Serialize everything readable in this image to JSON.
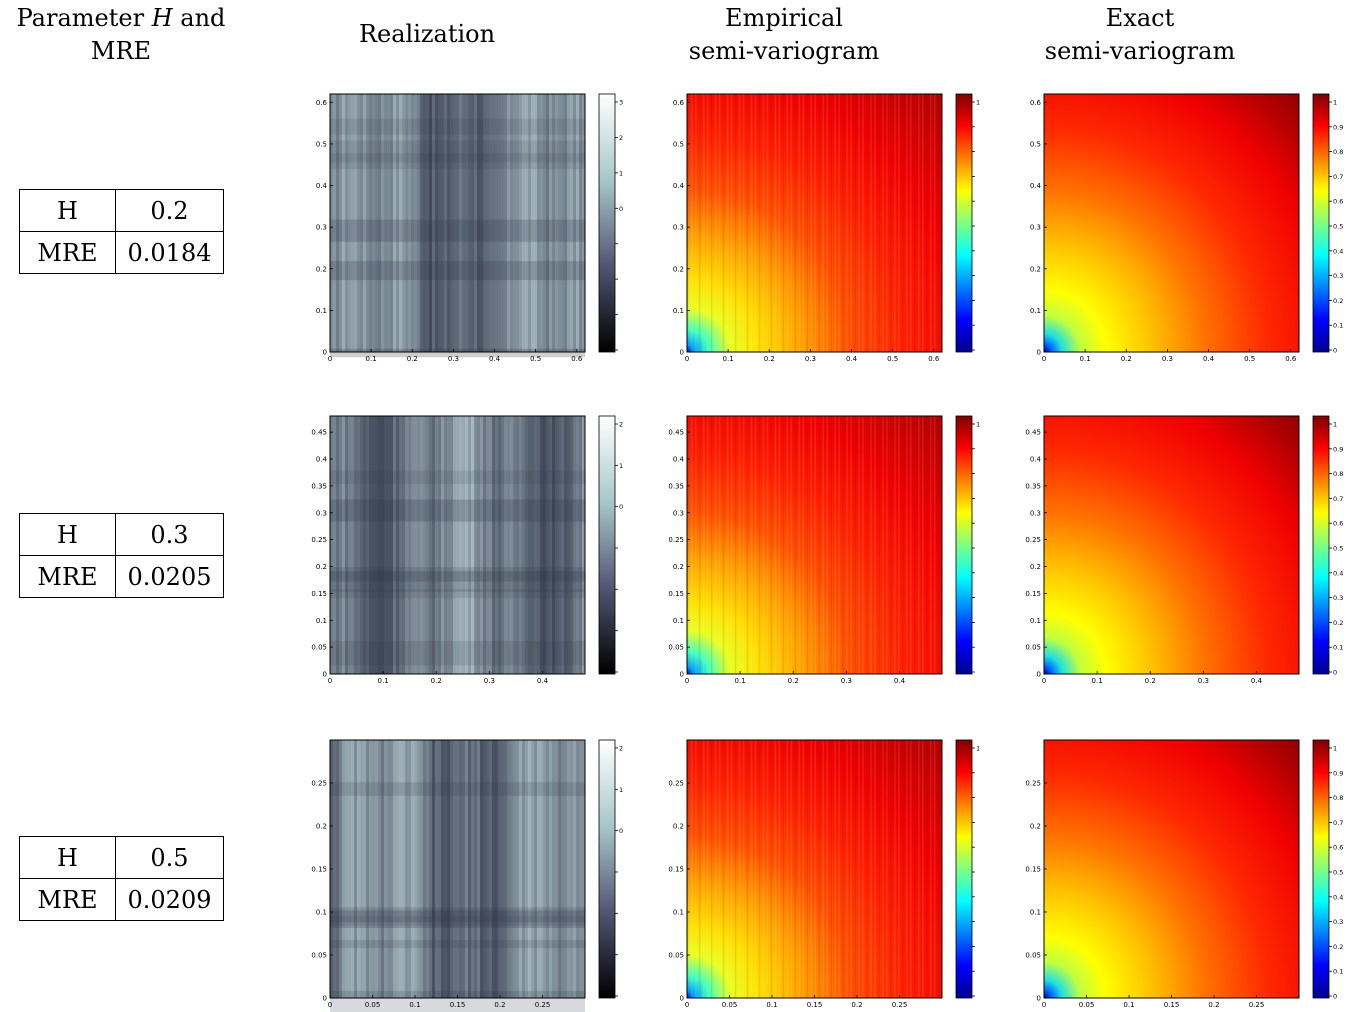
{
  "headers": {
    "param_line1_pre": "Parameter ",
    "param_line1_ital": "H",
    "param_line1_post": " and",
    "param_line2": "MRE",
    "realization": "Realization",
    "empirical_line1": "Empirical",
    "empirical_line2": "semi-variogram",
    "exact_line1": "Exact",
    "exact_line2": "semi-variogram"
  },
  "rows": [
    {
      "h_label": "H",
      "h_value": "0.2",
      "mre_label": "MRE",
      "mre_value": "0.0184"
    },
    {
      "h_label": "H",
      "h_value": "0.3",
      "mre_label": "MRE",
      "mre_value": "0.0205"
    },
    {
      "h_label": "H",
      "h_value": "0.5",
      "mre_label": "MRE",
      "mre_value": "0.0209"
    }
  ],
  "chart_data": [
    {
      "row": 0,
      "panel": "realization",
      "type": "heatmap",
      "colormap": "bone",
      "x_ticks": [
        "0",
        "0.1",
        "0.2",
        "0.3",
        "0.4",
        "0.5",
        "0.6"
      ],
      "y_ticks": [
        "0",
        "0.1",
        "0.2",
        "0.3",
        "0.4",
        "0.5",
        "0.6"
      ],
      "xlim": [
        0,
        0.62
      ],
      "ylim": [
        0,
        0.62
      ],
      "colorbar_ticks": [
        "3",
        "2",
        "1",
        "0",
        "",
        "",
        "",
        ""
      ]
    },
    {
      "row": 0,
      "panel": "empirical",
      "type": "heatmap",
      "colormap": "jet",
      "x_ticks": [
        "0",
        "0.1",
        "0.2",
        "0.3",
        "0.4",
        "0.5",
        "0.6"
      ],
      "y_ticks": [
        "0",
        "0.1",
        "0.2",
        "0.3",
        "0.4",
        "0.5",
        "0.6"
      ],
      "xlim": [
        0,
        0.62
      ],
      "ylim": [
        0,
        0.62
      ],
      "colorbar_ticks": [
        "1",
        "",
        "",
        "",
        "",
        "",
        "",
        "",
        "",
        "",
        ""
      ]
    },
    {
      "row": 0,
      "panel": "exact",
      "type": "heatmap",
      "colormap": "jet",
      "x_ticks": [
        "0",
        "0.1",
        "0.2",
        "0.3",
        "0.4",
        "0.5",
        "0.6"
      ],
      "y_ticks": [
        "0",
        "0.1",
        "0.2",
        "0.3",
        "0.4",
        "0.5",
        "0.6"
      ],
      "xlim": [
        0,
        0.62
      ],
      "ylim": [
        0,
        0.62
      ],
      "colorbar_ticks": [
        "1",
        "0.9",
        "0.8",
        "0.7",
        "0.6",
        "0.5",
        "0.4",
        "0.3",
        "0.2",
        "0.1",
        "0"
      ]
    },
    {
      "row": 1,
      "panel": "realization",
      "type": "heatmap",
      "colormap": "bone",
      "x_ticks": [
        "0",
        "0.1",
        "0.2",
        "0.3",
        "0.4"
      ],
      "y_ticks": [
        "0",
        "0.05",
        "0.1",
        "0.15",
        "0.2",
        "0.25",
        "0.3",
        "0.35",
        "0.4",
        "0.45"
      ],
      "xlim": [
        0,
        0.48
      ],
      "ylim": [
        0,
        0.48
      ],
      "colorbar_ticks": [
        "2",
        "1",
        "0",
        "",
        "",
        "",
        ""
      ]
    },
    {
      "row": 1,
      "panel": "empirical",
      "type": "heatmap",
      "colormap": "jet",
      "x_ticks": [
        "0",
        "0.1",
        "0.2",
        "0.3",
        "0.4"
      ],
      "y_ticks": [
        "0",
        "0.05",
        "0.1",
        "0.15",
        "0.2",
        "0.25",
        "0.3",
        "0.35",
        "0.4",
        "0.45"
      ],
      "xlim": [
        0,
        0.48
      ],
      "ylim": [
        0,
        0.48
      ],
      "colorbar_ticks": [
        "1",
        "",
        "",
        "",
        "",
        "",
        "",
        "",
        "",
        "",
        ""
      ]
    },
    {
      "row": 1,
      "panel": "exact",
      "type": "heatmap",
      "colormap": "jet",
      "x_ticks": [
        "0",
        "0.1",
        "0.2",
        "0.3",
        "0.4"
      ],
      "y_ticks": [
        "0",
        "0.05",
        "0.1",
        "0.15",
        "0.2",
        "0.25",
        "0.3",
        "0.35",
        "0.4",
        "0.45"
      ],
      "xlim": [
        0,
        0.48
      ],
      "ylim": [
        0,
        0.48
      ],
      "colorbar_ticks": [
        "1",
        "0.9",
        "0.8",
        "0.7",
        "0.6",
        "0.5",
        "0.4",
        "0.3",
        "0.2",
        "0.1",
        "0"
      ]
    },
    {
      "row": 2,
      "panel": "realization",
      "type": "heatmap",
      "colormap": "bone",
      "x_ticks": [
        "0",
        "0.05",
        "0.1",
        "0.15",
        "0.2",
        "0.25"
      ],
      "y_ticks": [
        "0",
        "0.05",
        "0.1",
        "0.15",
        "0.2",
        "0.25"
      ],
      "xlim": [
        0,
        0.3
      ],
      "ylim": [
        0,
        0.3
      ],
      "colorbar_ticks": [
        "2",
        "1",
        "0",
        "",
        "",
        "",
        ""
      ]
    },
    {
      "row": 2,
      "panel": "empirical",
      "type": "heatmap",
      "colormap": "jet",
      "x_ticks": [
        "0",
        "0.05",
        "0.1",
        "0.15",
        "0.2",
        "0.25"
      ],
      "y_ticks": [
        "0",
        "0.05",
        "0.1",
        "0.15",
        "0.2",
        "0.25"
      ],
      "xlim": [
        0,
        0.3
      ],
      "ylim": [
        0,
        0.3
      ],
      "colorbar_ticks": [
        "1",
        "",
        "",
        "",
        "",
        "",
        "",
        "",
        "",
        "",
        ""
      ]
    },
    {
      "row": 2,
      "panel": "exact",
      "type": "heatmap",
      "colormap": "jet",
      "x_ticks": [
        "0",
        "0.05",
        "0.1",
        "0.15",
        "0.2",
        "0.25"
      ],
      "y_ticks": [
        "0",
        "0.05",
        "0.1",
        "0.15",
        "0.2",
        "0.25"
      ],
      "xlim": [
        0,
        0.3
      ],
      "ylim": [
        0,
        0.3
      ],
      "colorbar_ticks": [
        "1",
        "0.9",
        "0.8",
        "0.7",
        "0.6",
        "0.5",
        "0.4",
        "0.3",
        "0.2",
        "0.1",
        "0"
      ]
    }
  ]
}
